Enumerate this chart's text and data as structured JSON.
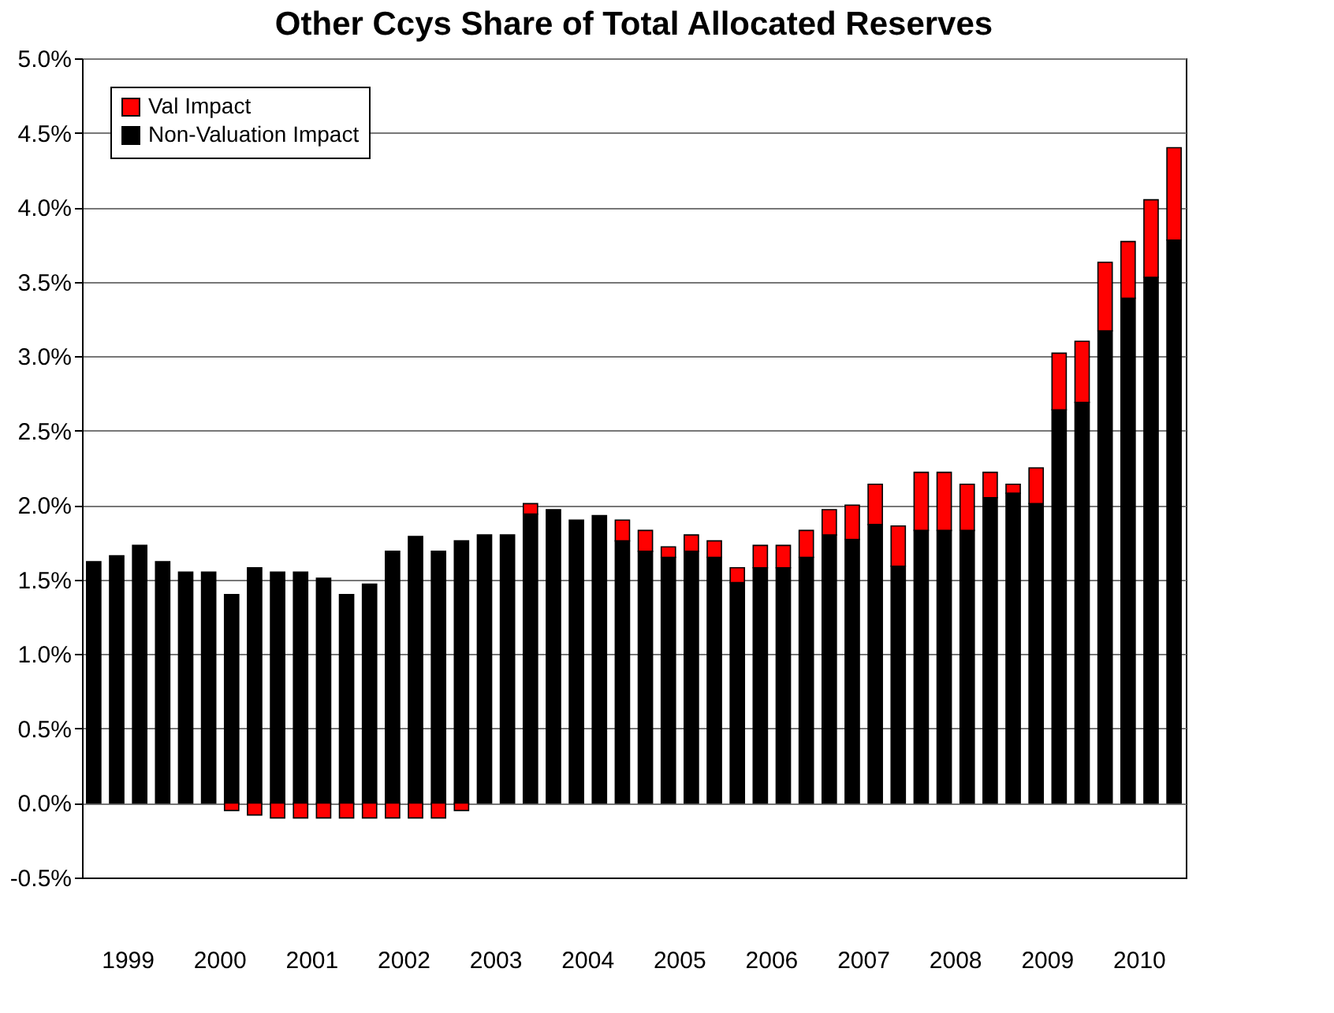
{
  "chart_data": {
    "type": "bar",
    "title": "Other Ccys Share of Total Allocated Reserves",
    "categories": [
      null,
      "1999",
      null,
      null,
      null,
      "2000",
      null,
      null,
      null,
      "2001",
      null,
      null,
      null,
      "2002",
      null,
      null,
      null,
      "2003",
      null,
      null,
      null,
      "2004",
      null,
      null,
      null,
      "2005",
      null,
      null,
      null,
      "2006",
      null,
      null,
      null,
      "2007",
      null,
      null,
      null,
      "2008",
      null,
      null,
      null,
      "2009",
      null,
      null,
      null,
      "2010",
      null,
      null
    ],
    "stacked": true,
    "series": [
      {
        "name": "Non-Valuation Impact",
        "color": "#000000",
        "values": [
          1.62,
          1.66,
          1.73,
          1.62,
          1.55,
          1.55,
          1.4,
          1.58,
          1.55,
          1.55,
          1.51,
          1.4,
          1.47,
          1.69,
          1.79,
          1.69,
          1.76,
          1.8,
          1.8,
          1.94,
          1.97,
          1.9,
          1.93,
          1.76,
          1.69,
          1.65,
          1.69,
          1.65,
          1.48,
          1.58,
          1.58,
          1.65,
          1.8,
          1.77,
          1.87,
          1.59,
          1.83,
          1.83,
          1.83,
          2.05,
          2.08,
          2.01,
          2.64,
          2.69,
          3.17,
          3.39,
          3.53,
          3.78
        ]
      },
      {
        "name": "Val Impact",
        "color": "#ff0000",
        "values": [
          null,
          null,
          null,
          null,
          null,
          null,
          -0.05,
          -0.08,
          -0.1,
          -0.1,
          -0.1,
          -0.1,
          -0.1,
          -0.1,
          -0.1,
          -0.1,
          -0.05,
          null,
          null,
          0.07,
          null,
          null,
          null,
          0.14,
          0.14,
          0.07,
          0.11,
          0.11,
          0.1,
          0.15,
          0.15,
          0.18,
          0.17,
          0.23,
          0.27,
          0.27,
          0.39,
          0.39,
          0.31,
          0.17,
          0.06,
          0.24,
          0.38,
          0.41,
          0.46,
          0.38,
          0.52,
          0.62
        ]
      }
    ],
    "ylim": [
      -0.5,
      5.0
    ],
    "yticks": [
      {
        "value": -0.5,
        "label": "-0.5%"
      },
      {
        "value": 0,
        "label": "0.0%"
      },
      {
        "value": 0.5,
        "label": "0.5%"
      },
      {
        "value": 1.0,
        "label": "1.0%"
      },
      {
        "value": 1.5,
        "label": "1.5%"
      },
      {
        "value": 2.0,
        "label": "2.0%"
      },
      {
        "value": 2.5,
        "label": "2.5%"
      },
      {
        "value": 3.0,
        "label": "3.0%"
      },
      {
        "value": 3.5,
        "label": "3.5%"
      },
      {
        "value": 4.0,
        "label": "4.0%"
      },
      {
        "value": 4.5,
        "label": "4.5%"
      },
      {
        "value": 5.0,
        "label": "5.0%"
      }
    ],
    "grid": "y",
    "legend": "top left"
  }
}
